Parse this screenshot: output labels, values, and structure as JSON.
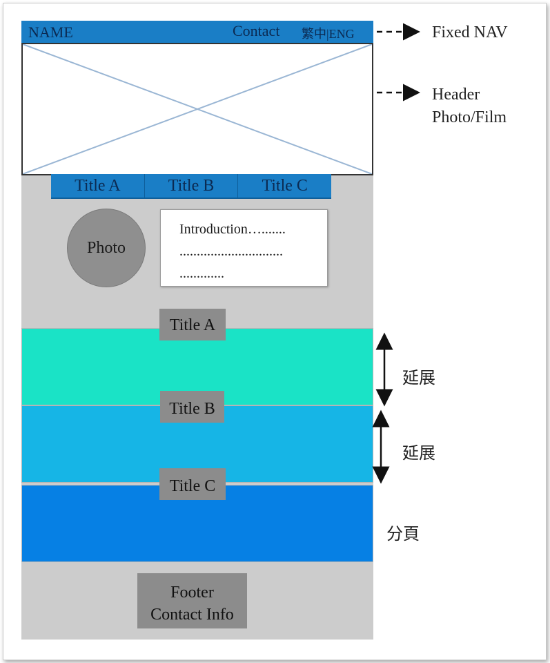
{
  "nav": {
    "name": "NAME",
    "contact": "Contact",
    "lang": "繁中|ENG"
  },
  "tabs": [
    "Title A",
    "Title B",
    "Title C"
  ],
  "photo": "Photo",
  "intro": [
    "Introduction….......",
    "..............................",
    "............."
  ],
  "sections": [
    {
      "label": "Title A",
      "color": "#1ae3c6"
    },
    {
      "label": "Title B",
      "color": "#16b5e6"
    },
    {
      "label": "Title C",
      "color": "#0680e4"
    }
  ],
  "footer": {
    "line1": "Footer",
    "line2": "Contact Info"
  },
  "annotations": {
    "nav": "Fixed NAV",
    "header_line1": "Header",
    "header_line2": "Photo/Film",
    "extend1": "延展",
    "extend2": "延展",
    "pagination": "分頁"
  },
  "colors": {
    "nav_blue": "#1a7ec6",
    "gray_body": "#cccccc",
    "label_gray": "#8c8c8c"
  }
}
